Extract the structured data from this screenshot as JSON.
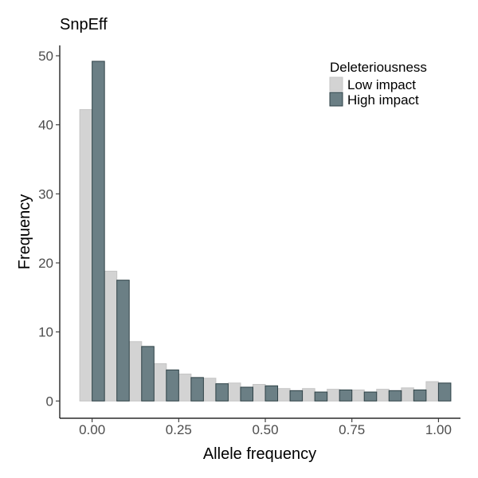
{
  "chart_data": {
    "type": "bar",
    "title": "SnpEff",
    "xlabel": "Allele frequency",
    "ylabel": "Frequency",
    "x_ticks": [
      "0.00",
      "0.25",
      "0.50",
      "0.75",
      "1.00"
    ],
    "x_tick_values": [
      0,
      0.25,
      0.5,
      0.75,
      1.0
    ],
    "y_ticks": [
      "0",
      "10",
      "20",
      "30",
      "40",
      "50"
    ],
    "y_tick_values": [
      0,
      10,
      20,
      30,
      40,
      50
    ],
    "xlim": [
      -0.0935,
      1.0635
    ],
    "ylim": [
      -2.5,
      51.5
    ],
    "bin_centers": [
      0.0,
      0.0714,
      0.1429,
      0.2143,
      0.2857,
      0.3571,
      0.4286,
      0.5,
      0.5714,
      0.6429,
      0.7143,
      0.7857,
      0.8571,
      0.9286,
      1.0
    ],
    "bin_width": 0.0714,
    "legend": {
      "title": "Deleteriousness",
      "position": "top-right",
      "entries": [
        "Low impact",
        "High impact"
      ]
    },
    "series": [
      {
        "name": "Low impact",
        "color": "#d3d3d3",
        "stroke": "#c4c4c4",
        "values": [
          42.2,
          18.8,
          8.6,
          5.4,
          3.9,
          3.3,
          2.6,
          2.4,
          1.8,
          1.8,
          1.7,
          1.6,
          1.7,
          1.9,
          2.8
        ]
      },
      {
        "name": "High impact",
        "color": "#6b7f85",
        "stroke": "#2f4247",
        "values": [
          49.2,
          17.5,
          7.9,
          4.5,
          3.4,
          2.5,
          2.0,
          2.2,
          1.5,
          1.3,
          1.6,
          1.3,
          1.5,
          1.6,
          2.6
        ]
      }
    ],
    "grid": false
  }
}
